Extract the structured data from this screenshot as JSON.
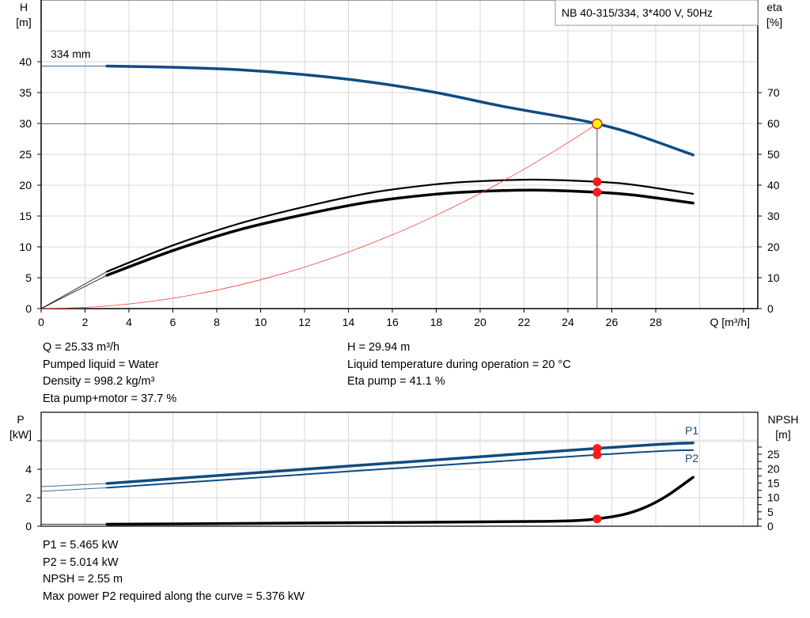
{
  "chart_data": [
    {
      "type": "line",
      "title": "NB 40-315/334, 3*400 V, 50Hz",
      "xlabel": "Q [m³/h]",
      "ylabel": "H\n[m]",
      "ylabel_right": "eta\n[%]",
      "xlim": [
        0,
        32.65
      ],
      "ylim": [
        0,
        50
      ],
      "ylim_right": [
        0,
        100
      ],
      "grid": true,
      "x_ticks": [
        0,
        2,
        4,
        6,
        8,
        10,
        12,
        14,
        16,
        18,
        20,
        22,
        24,
        26,
        28
      ],
      "y_ticks": [
        0,
        5,
        10,
        15,
        20,
        25,
        30,
        35,
        40
      ],
      "y_ticks_right": [
        0,
        10,
        20,
        30,
        40,
        50,
        60,
        70
      ],
      "annotation": "334 mm",
      "operating_point": {
        "Q": 25.33,
        "H": 29.94,
        "eta_pump": 41.1,
        "eta_pump_motor": 37.7
      },
      "series": [
        {
          "id": "H",
          "axis": "left",
          "color": "#0f4c81",
          "x": [
            0,
            3,
            6,
            9,
            12,
            15,
            18,
            21,
            24,
            25.33,
            27,
            29.7
          ],
          "y": [
            39.3,
            39.3,
            39.1,
            38.7,
            37.9,
            36.7,
            35.0,
            32.8,
            30.9,
            29.94,
            28.3,
            24.9
          ]
        },
        {
          "id": "eta_pump",
          "axis": "right",
          "color": "#000000",
          "x": [
            0,
            3,
            6,
            9,
            12,
            15,
            18,
            20,
            22.5,
            25.33,
            27,
            29.7
          ],
          "y": [
            0,
            12,
            20.5,
            27.5,
            33,
            37.5,
            40.3,
            41.3,
            41.8,
            41.1,
            40.1,
            37.2
          ]
        },
        {
          "id": "eta_pump_motor",
          "axis": "right",
          "color": "#000000",
          "x": [
            0,
            3,
            6,
            9,
            12,
            15,
            18,
            20,
            22.5,
            25.33,
            27,
            29.7
          ],
          "y": [
            0,
            10.8,
            18.8,
            25.5,
            30.5,
            34.6,
            37.1,
            38.0,
            38.4,
            37.7,
            36.8,
            34.2
          ]
        },
        {
          "id": "system_curve",
          "axis": "left",
          "color": "#ff3b3b",
          "x": [
            0,
            2,
            4,
            6,
            8,
            10,
            12,
            14,
            16,
            18,
            20,
            22,
            24,
            25.33
          ],
          "y": [
            0,
            0.19,
            0.75,
            1.68,
            2.99,
            4.67,
            6.72,
            9.15,
            11.95,
            15.12,
            18.67,
            22.59,
            26.88,
            29.94
          ]
        }
      ]
    },
    {
      "type": "line",
      "ylabel": "P\n[kW]",
      "ylabel_right": "NPSH\n[m]",
      "xlim": [
        0,
        32.65
      ],
      "ylim": [
        0,
        8
      ],
      "ylim_right": [
        0,
        39.6
      ],
      "grid": true,
      "y_ticks": [
        0,
        2,
        4
      ],
      "y_ticks_right": [
        0,
        5,
        10,
        15,
        20,
        25
      ],
      "series": [
        {
          "name": "P1",
          "id": "P1",
          "axis": "left",
          "color": "#0f4c81",
          "x": [
            0,
            3,
            25.33,
            29.7
          ],
          "y": [
            2.78,
            3.0,
            5.465,
            5.85
          ]
        },
        {
          "name": "P2",
          "id": "P2",
          "axis": "left",
          "color": "#0f4c81",
          "x": [
            0,
            3,
            25.33,
            29.7
          ],
          "y": [
            2.45,
            2.7,
            5.014,
            5.35
          ]
        },
        {
          "id": "NPSH",
          "axis": "right",
          "color": "#000000",
          "x": [
            0,
            3,
            8,
            14,
            20,
            23,
            24.5,
            25.33,
            26.5,
            27.5,
            28.5,
            29.7
          ],
          "y": [
            0.7,
            0.7,
            0.9,
            1.2,
            1.5,
            1.7,
            2.0,
            2.55,
            4.0,
            6.5,
            10.5,
            17.0
          ]
        }
      ],
      "markers": {
        "Q": 25.33,
        "P1": 5.465,
        "P2": 5.014,
        "NPSH": 2.55
      }
    }
  ],
  "info_top": {
    "left": [
      "Q = 25.33 m³/h",
      "Pumped liquid = Water",
      "Density = 998.2 kg/m³",
      "Eta pump+motor = 37.7 %"
    ],
    "right": [
      "H = 29.94 m",
      "Liquid temperature during operation = 20 °C",
      "Eta pump = 41.1 %"
    ]
  },
  "info_bottom": [
    "P1 = 5.465 kW",
    "P2 = 5.014 kW",
    "NPSH = 2.55 m",
    "Max power P2 required along the curve = 5.376 kW"
  ]
}
